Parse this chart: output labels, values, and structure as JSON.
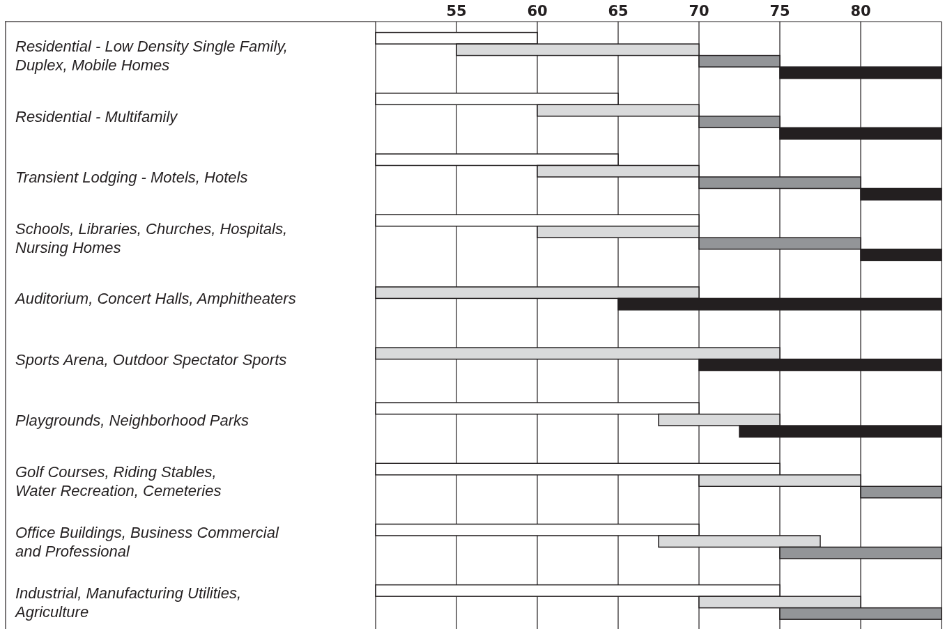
{
  "chart_data": {
    "type": "bar",
    "orientation": "horizontal",
    "categories": [
      "Residential - Low Density Single Family,\nDuplex, Mobile Homes",
      "Residential - Multifamily",
      "Transient Lodging - Motels, Hotels",
      "Schools, Libraries, Churches, Hospitals,\nNursing Homes",
      "Auditorium, Concert Halls, Amphitheaters",
      "Sports Arena, Outdoor Spectator Sports",
      "Playgrounds, Neighborhood Parks",
      "Golf Courses, Riding Stables,\nWater Recreation, Cemeteries",
      "Office Buildings, Business Commercial\nand Professional",
      "Industrial, Manufacturing Utilities,\nAgriculture"
    ],
    "series": [
      {
        "color": "#ffffff",
        "base": [
          50,
          50,
          50,
          50,
          null,
          null,
          50,
          50,
          50,
          50
        ],
        "values": [
          10,
          15,
          15,
          20,
          null,
          null,
          20,
          25,
          20,
          25
        ]
      },
      {
        "color": "#d9dadb",
        "base": [
          55,
          60,
          60,
          60,
          50,
          50,
          67.5,
          70,
          67.5,
          70
        ],
        "values": [
          15,
          10,
          10,
          10,
          20,
          25,
          7.5,
          10,
          10,
          10
        ]
      },
      {
        "color": "#939598",
        "base": [
          70,
          70,
          70,
          70,
          null,
          null,
          null,
          80,
          75,
          75
        ],
        "values": [
          5,
          5,
          10,
          10,
          null,
          null,
          null,
          5,
          10,
          10
        ]
      },
      {
        "color": "#231f20",
        "base": [
          75,
          75,
          80,
          80,
          65,
          70,
          72.5,
          null,
          null,
          null
        ],
        "values": [
          10,
          10,
          5,
          5,
          20,
          15,
          12.5,
          null,
          null,
          null
        ]
      }
    ],
    "xlim": [
      50,
      85
    ],
    "xticks": [
      55,
      60,
      65,
      70,
      75,
      80
    ],
    "grid": "x"
  }
}
